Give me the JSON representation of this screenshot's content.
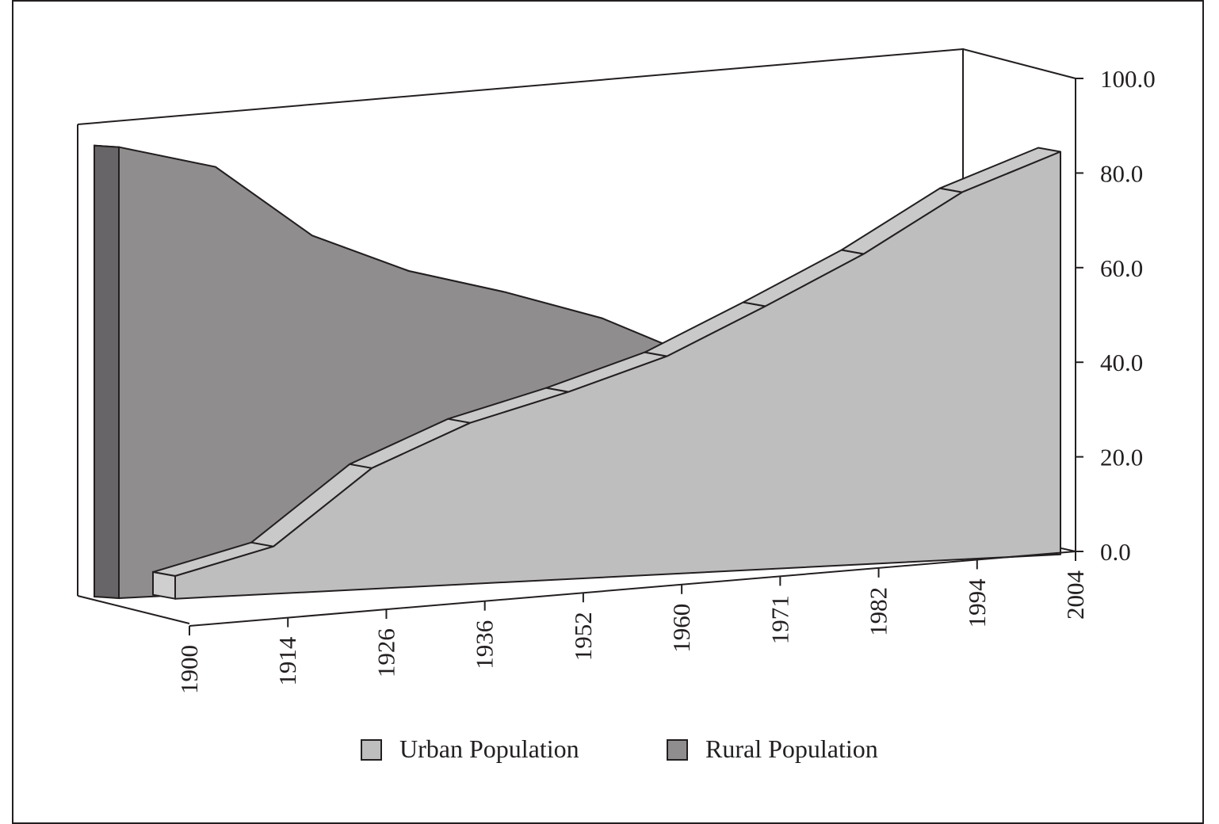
{
  "chart_data": {
    "type": "area",
    "view": "3d",
    "categories": [
      "1900",
      "1914",
      "1926",
      "1936",
      "1952",
      "1960",
      "1971",
      "1982",
      "1994",
      "2004"
    ],
    "series": [
      {
        "name": "Urban Population",
        "values": [
          4.8,
          10.0,
          25.5,
          34.0,
          39.5,
          46.0,
          55.5,
          65.5,
          77.5,
          85.0
        ],
        "color": "#bebebe"
      },
      {
        "name": "Rural Population",
        "values": [
          95.2,
          90.0,
          74.5,
          66.0,
          60.5,
          54.0,
          44.5,
          34.5,
          22.5,
          15.0
        ],
        "color": "#8f8d8e"
      }
    ],
    "yticks": [
      "0.0",
      "20.0",
      "40.0",
      "60.0",
      "80.0",
      "100.0"
    ],
    "ylim": [
      0,
      100
    ],
    "yaxis_side": "right",
    "grid": false,
    "legend_position": "bottom",
    "colors": {
      "rural_side": "#676567",
      "rural_top": "#999798",
      "urban_top": "#c9c9c9",
      "urban_side": "#cfcfcf",
      "outline": "#231f20"
    }
  }
}
